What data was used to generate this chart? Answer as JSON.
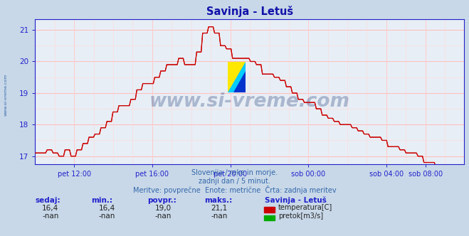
{
  "title": "Savinja - Letuš",
  "title_color": "#1111aa",
  "bg_color": "#c8d8e8",
  "plot_bg_color": "#e8eef5",
  "line_color": "#cc0000",
  "grid_color_major": "#ffbbbb",
  "grid_color_minor": "#ffd8d8",
  "axis_color": "#2222cc",
  "text_color": "#3366aa",
  "ylim": [
    16.75,
    21.35
  ],
  "yticks": [
    17,
    18,
    19,
    20,
    21
  ],
  "xlabel_ticks": [
    "pet 12:00",
    "pet 16:00",
    "pet 20:00",
    "sob 00:00",
    "sob 04:00",
    "sob 08:00"
  ],
  "subtitle_lines": [
    "Slovenija / reke in morje.",
    "zadnji dan / 5 minut.",
    "Meritve: povprečne  Enote: metrične  Črta: zadnja meritev"
  ],
  "legend_station": "Savinja - Letuš",
  "legend_items": [
    {
      "label": "temperatura[C]",
      "color": "#cc0000"
    },
    {
      "label": "pretok[m3/s]",
      "color": "#00aa00"
    }
  ],
  "stats_headers": [
    "sedaj:",
    "min.:",
    "povpr.:",
    "maks.:"
  ],
  "stats_row1": [
    "16,4",
    "16,4",
    "19,0",
    "21,1"
  ],
  "stats_row2": [
    "-nan",
    "-nan",
    "-nan",
    "-nan"
  ],
  "watermark_text": "www.si-vreme.com",
  "sidebar_text": "www.si-vreme.com",
  "logo_colors": [
    "#FFE800",
    "#00CCFF",
    "#0033CC"
  ],
  "total_hours": 22.0,
  "start_hour": 10.0,
  "tick_hours": [
    12,
    16,
    20,
    24,
    28,
    30
  ],
  "n_points": 288
}
